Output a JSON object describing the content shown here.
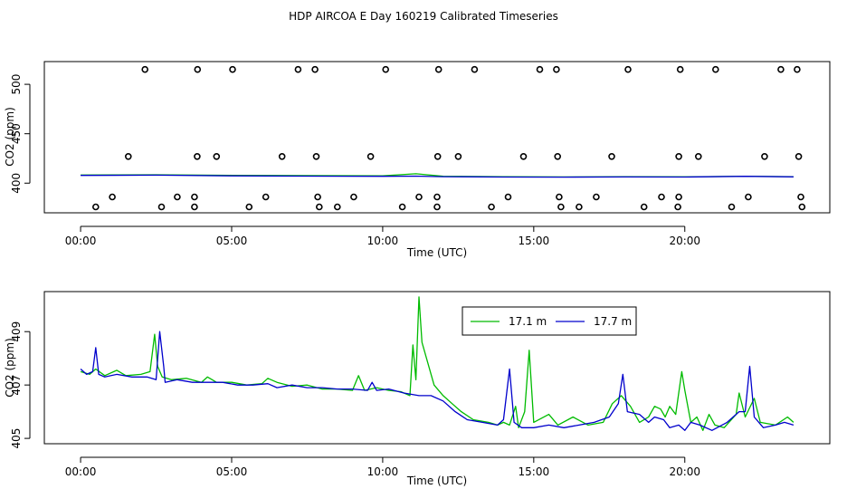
{
  "title": "HDP AIRCOA E  Day 160219  Calibrated Timeseries",
  "colors": {
    "series_a": "#00bb00",
    "series_b": "#0000cc",
    "axis": "#000000"
  },
  "chart_data": [
    {
      "type": "scatter",
      "xlabel": "Time (UTC)",
      "ylabel": "CO2 (ppm)",
      "xlim": [
        -1.2,
        24.8
      ],
      "ylim": [
        370,
        523
      ],
      "xticks": [
        {
          "v": 0,
          "label": "00:00"
        },
        {
          "v": 5,
          "label": "05:00"
        },
        {
          "v": 10,
          "label": "10:00"
        },
        {
          "v": 15,
          "label": "15:00"
        },
        {
          "v": 20,
          "label": "20:00"
        }
      ],
      "yticks": [
        {
          "v": 400,
          "label": "400"
        },
        {
          "v": 450,
          "label": "450"
        },
        {
          "v": 500,
          "label": "500"
        }
      ],
      "calibration_points": [
        {
          "x": 2.13,
          "y": 515
        },
        {
          "x": 3.87,
          "y": 515
        },
        {
          "x": 5.03,
          "y": 515
        },
        {
          "x": 7.2,
          "y": 515
        },
        {
          "x": 7.76,
          "y": 515
        },
        {
          "x": 10.1,
          "y": 515
        },
        {
          "x": 11.85,
          "y": 515
        },
        {
          "x": 13.04,
          "y": 515
        },
        {
          "x": 15.2,
          "y": 515
        },
        {
          "x": 15.75,
          "y": 515
        },
        {
          "x": 18.12,
          "y": 515
        },
        {
          "x": 19.85,
          "y": 515
        },
        {
          "x": 21.02,
          "y": 515
        },
        {
          "x": 23.18,
          "y": 515
        },
        {
          "x": 23.72,
          "y": 515
        },
        {
          "x": 1.58,
          "y": 427
        },
        {
          "x": 3.86,
          "y": 427
        },
        {
          "x": 4.5,
          "y": 427
        },
        {
          "x": 6.67,
          "y": 427
        },
        {
          "x": 7.8,
          "y": 427
        },
        {
          "x": 9.6,
          "y": 427
        },
        {
          "x": 11.82,
          "y": 427
        },
        {
          "x": 12.5,
          "y": 427
        },
        {
          "x": 14.66,
          "y": 427
        },
        {
          "x": 15.79,
          "y": 427
        },
        {
          "x": 17.58,
          "y": 427
        },
        {
          "x": 19.8,
          "y": 427
        },
        {
          "x": 20.45,
          "y": 427
        },
        {
          "x": 22.64,
          "y": 427
        },
        {
          "x": 23.77,
          "y": 427
        },
        {
          "x": 1.05,
          "y": 386
        },
        {
          "x": 3.2,
          "y": 386
        },
        {
          "x": 3.77,
          "y": 386
        },
        {
          "x": 6.13,
          "y": 386
        },
        {
          "x": 7.85,
          "y": 386
        },
        {
          "x": 9.04,
          "y": 386
        },
        {
          "x": 11.2,
          "y": 386
        },
        {
          "x": 11.8,
          "y": 386
        },
        {
          "x": 14.15,
          "y": 386
        },
        {
          "x": 15.84,
          "y": 386
        },
        {
          "x": 17.07,
          "y": 386
        },
        {
          "x": 19.23,
          "y": 386
        },
        {
          "x": 19.8,
          "y": 386
        },
        {
          "x": 22.1,
          "y": 386
        },
        {
          "x": 23.84,
          "y": 386
        },
        {
          "x": 0.5,
          "y": 376
        },
        {
          "x": 2.68,
          "y": 376
        },
        {
          "x": 3.77,
          "y": 376
        },
        {
          "x": 5.58,
          "y": 376
        },
        {
          "x": 7.9,
          "y": 376
        },
        {
          "x": 8.5,
          "y": 376
        },
        {
          "x": 10.65,
          "y": 376
        },
        {
          "x": 11.8,
          "y": 376
        },
        {
          "x": 13.6,
          "y": 376
        },
        {
          "x": 15.9,
          "y": 376
        },
        {
          "x": 16.5,
          "y": 376
        },
        {
          "x": 18.65,
          "y": 376
        },
        {
          "x": 19.77,
          "y": 376
        },
        {
          "x": 21.55,
          "y": 376
        },
        {
          "x": 23.88,
          "y": 376
        }
      ],
      "series": [
        {
          "values": [
            [
              0,
              408.2
            ],
            [
              2.5,
              408.5
            ],
            [
              5,
              407.9
            ],
            [
              7.5,
              407.7
            ],
            [
              10,
              407.5
            ],
            [
              11.1,
              409.5
            ],
            [
              12,
              407
            ],
            [
              14,
              406.5
            ],
            [
              16,
              406.3
            ],
            [
              18,
              406.5
            ],
            [
              20,
              406.4
            ],
            [
              22,
              407
            ],
            [
              23.6,
              406.6
            ]
          ]
        },
        {
          "values": [
            [
              0,
              407.8
            ],
            [
              2.5,
              408.1
            ],
            [
              5,
              407.4
            ],
            [
              7.5,
              407.1
            ],
            [
              10,
              406.9
            ],
            [
              11.1,
              407.1
            ],
            [
              12,
              406.6
            ],
            [
              14,
              406.2
            ],
            [
              16,
              406.1
            ],
            [
              18,
              406.3
            ],
            [
              20,
              406.2
            ],
            [
              22,
              406.9
            ],
            [
              23.6,
              406.4
            ]
          ]
        }
      ]
    },
    {
      "type": "line",
      "xlabel": "Time (UTC)",
      "ylabel": "CO2 (ppm)",
      "xlim": [
        -1.2,
        24.8
      ],
      "ylim": [
        404.8,
        410.5
      ],
      "xticks": [
        {
          "v": 0,
          "label": "00:00"
        },
        {
          "v": 5,
          "label": "05:00"
        },
        {
          "v": 10,
          "label": "10:00"
        },
        {
          "v": 15,
          "label": "15:00"
        },
        {
          "v": 20,
          "label": "20:00"
        }
      ],
      "yticks": [
        {
          "v": 405,
          "label": "405"
        },
        {
          "v": 407,
          "label": "407"
        },
        {
          "v": 409,
          "label": "409"
        }
      ],
      "legend": "top-center",
      "series": [
        {
          "name": "17.1 m",
          "values": [
            [
              0,
              407.5
            ],
            [
              0.3,
              407.4
            ],
            [
              0.5,
              407.6
            ],
            [
              0.8,
              407.35
            ],
            [
              1.2,
              407.55
            ],
            [
              1.5,
              407.35
            ],
            [
              2.0,
              407.4
            ],
            [
              2.3,
              407.5
            ],
            [
              2.45,
              408.9
            ],
            [
              2.55,
              407.7
            ],
            [
              2.7,
              407.3
            ],
            [
              3.0,
              407.2
            ],
            [
              3.5,
              407.25
            ],
            [
              4.0,
              407.1
            ],
            [
              4.2,
              407.3
            ],
            [
              4.5,
              407.1
            ],
            [
              5.0,
              407.1
            ],
            [
              5.5,
              407.0
            ],
            [
              6.0,
              407.05
            ],
            [
              6.2,
              407.25
            ],
            [
              6.5,
              407.1
            ],
            [
              7.0,
              406.95
            ],
            [
              7.5,
              407.0
            ],
            [
              8.0,
              406.85
            ],
            [
              8.5,
              406.85
            ],
            [
              9.0,
              406.8
            ],
            [
              9.2,
              407.35
            ],
            [
              9.4,
              406.8
            ],
            [
              9.8,
              406.9
            ],
            [
              10.2,
              406.8
            ],
            [
              10.6,
              406.75
            ],
            [
              10.9,
              406.6
            ],
            [
              11.0,
              408.5
            ],
            [
              11.1,
              407.2
            ],
            [
              11.2,
              410.3
            ],
            [
              11.3,
              408.6
            ],
            [
              11.5,
              407.8
            ],
            [
              11.7,
              407.0
            ],
            [
              12.0,
              406.6
            ],
            [
              12.3,
              406.3
            ],
            [
              12.6,
              406.0
            ],
            [
              13.0,
              405.7
            ],
            [
              13.5,
              405.6
            ],
            [
              13.8,
              405.5
            ],
            [
              14.0,
              405.6
            ],
            [
              14.2,
              405.5
            ],
            [
              14.4,
              406.2
            ],
            [
              14.5,
              405.4
            ],
            [
              14.7,
              406.0
            ],
            [
              14.85,
              408.3
            ],
            [
              15.0,
              405.6
            ],
            [
              15.5,
              405.9
            ],
            [
              15.8,
              405.5
            ],
            [
              16.3,
              405.8
            ],
            [
              16.8,
              405.5
            ],
            [
              17.3,
              405.6
            ],
            [
              17.6,
              406.3
            ],
            [
              17.9,
              406.6
            ],
            [
              18.2,
              406.2
            ],
            [
              18.5,
              405.6
            ],
            [
              18.8,
              405.8
            ],
            [
              19.0,
              406.2
            ],
            [
              19.2,
              406.1
            ],
            [
              19.35,
              405.8
            ],
            [
              19.5,
              406.2
            ],
            [
              19.7,
              405.9
            ],
            [
              19.9,
              407.5
            ],
            [
              20.0,
              406.8
            ],
            [
              20.2,
              405.6
            ],
            [
              20.4,
              405.8
            ],
            [
              20.6,
              405.3
            ],
            [
              20.8,
              405.9
            ],
            [
              21.0,
              405.5
            ],
            [
              21.3,
              405.4
            ],
            [
              21.7,
              405.9
            ],
            [
              21.8,
              406.7
            ],
            [
              22.0,
              405.8
            ],
            [
              22.3,
              406.5
            ],
            [
              22.5,
              405.6
            ],
            [
              23.0,
              405.5
            ],
            [
              23.4,
              405.8
            ],
            [
              23.6,
              405.6
            ]
          ]
        },
        {
          "name": "17.7 m",
          "values": [
            [
              0,
              407.6
            ],
            [
              0.2,
              407.4
            ],
            [
              0.4,
              407.5
            ],
            [
              0.5,
              408.4
            ],
            [
              0.6,
              407.4
            ],
            [
              0.8,
              407.3
            ],
            [
              1.2,
              407.4
            ],
            [
              1.7,
              407.3
            ],
            [
              2.2,
              407.3
            ],
            [
              2.5,
              407.2
            ],
            [
              2.62,
              409.0
            ],
            [
              2.75,
              407.7
            ],
            [
              2.8,
              407.1
            ],
            [
              3.2,
              407.2
            ],
            [
              3.7,
              407.1
            ],
            [
              4.2,
              407.1
            ],
            [
              4.7,
              407.1
            ],
            [
              5.2,
              407.0
            ],
            [
              5.7,
              407.0
            ],
            [
              6.2,
              407.05
            ],
            [
              6.5,
              406.9
            ],
            [
              7.0,
              407.0
            ],
            [
              7.5,
              406.9
            ],
            [
              8.0,
              406.9
            ],
            [
              8.5,
              406.85
            ],
            [
              9.0,
              406.85
            ],
            [
              9.5,
              406.8
            ],
            [
              9.65,
              407.1
            ],
            [
              9.8,
              406.8
            ],
            [
              10.2,
              406.85
            ],
            [
              10.7,
              406.7
            ],
            [
              11.2,
              406.6
            ],
            [
              11.6,
              406.6
            ],
            [
              12.0,
              406.4
            ],
            [
              12.4,
              406.0
            ],
            [
              12.8,
              405.7
            ],
            [
              13.3,
              405.6
            ],
            [
              13.8,
              405.5
            ],
            [
              14.0,
              405.7
            ],
            [
              14.2,
              407.6
            ],
            [
              14.35,
              405.6
            ],
            [
              14.6,
              405.4
            ],
            [
              15.0,
              405.4
            ],
            [
              15.5,
              405.5
            ],
            [
              16.0,
              405.4
            ],
            [
              16.5,
              405.5
            ],
            [
              17.0,
              405.6
            ],
            [
              17.5,
              405.8
            ],
            [
              17.8,
              406.3
            ],
            [
              17.95,
              407.4
            ],
            [
              18.1,
              406.0
            ],
            [
              18.5,
              405.9
            ],
            [
              18.8,
              405.6
            ],
            [
              19.0,
              405.8
            ],
            [
              19.3,
              405.7
            ],
            [
              19.5,
              405.4
            ],
            [
              19.8,
              405.5
            ],
            [
              20.0,
              405.3
            ],
            [
              20.2,
              405.6
            ],
            [
              20.5,
              405.5
            ],
            [
              20.9,
              405.3
            ],
            [
              21.4,
              405.6
            ],
            [
              21.8,
              406.0
            ],
            [
              22.0,
              406.0
            ],
            [
              22.15,
              407.7
            ],
            [
              22.3,
              405.8
            ],
            [
              22.6,
              405.4
            ],
            [
              23.0,
              405.5
            ],
            [
              23.3,
              405.6
            ],
            [
              23.6,
              405.5
            ]
          ]
        }
      ]
    }
  ]
}
